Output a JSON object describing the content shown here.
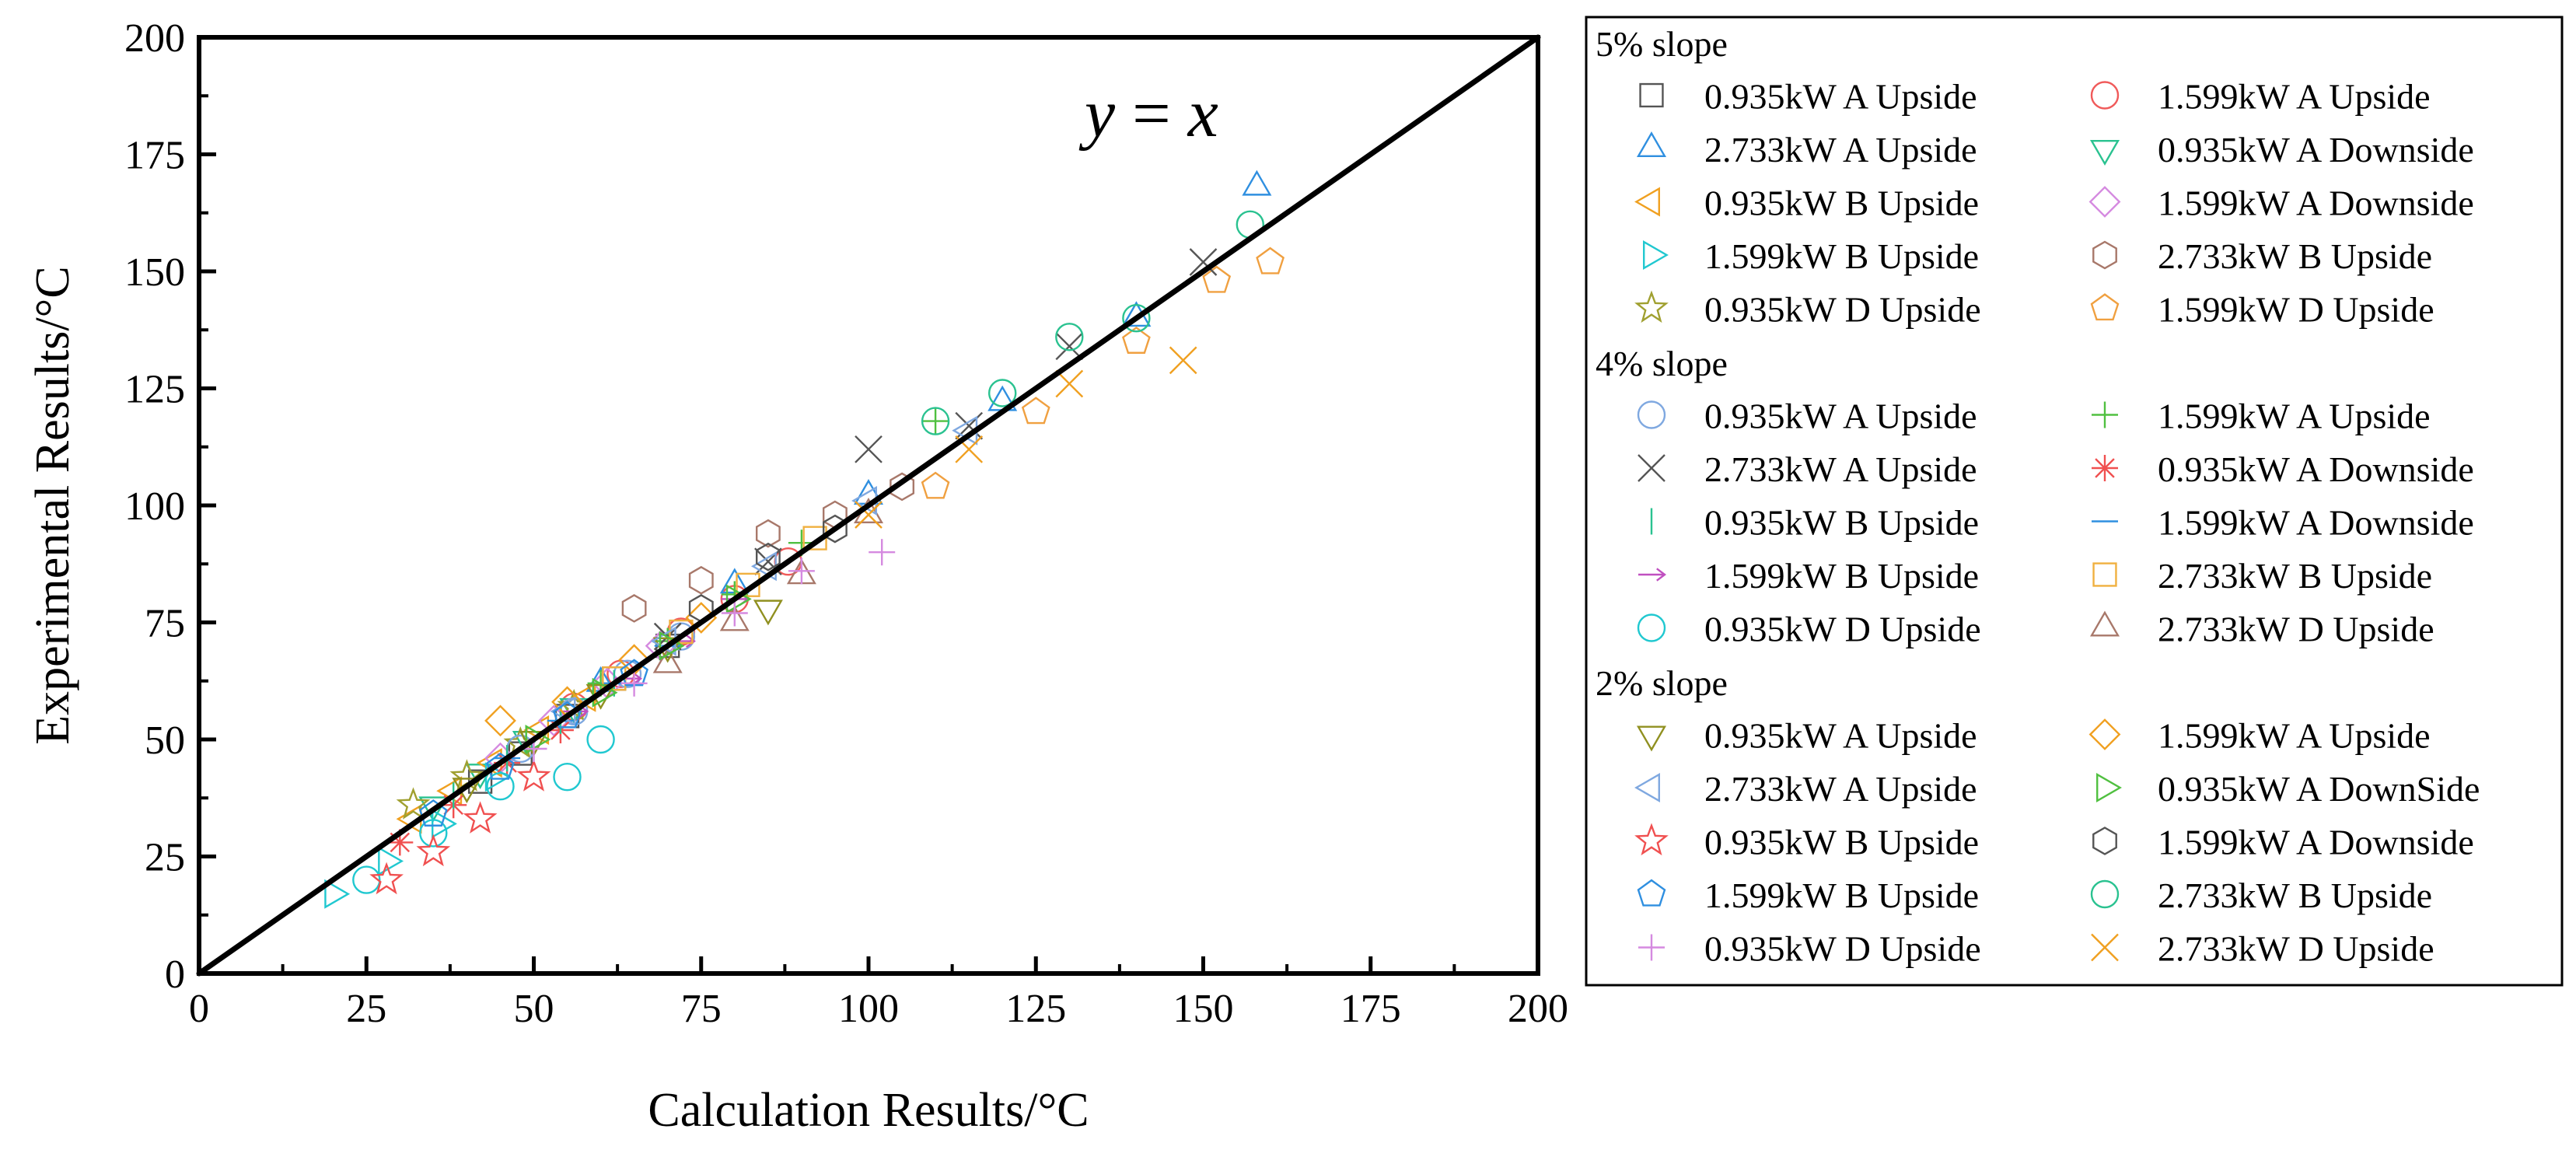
{
  "chart_data": {
    "type": "scatter",
    "xlabel": "Calculation Results/°C",
    "ylabel": "Experimental Results/°C",
    "xlim": [
      0,
      200
    ],
    "ylim": [
      0,
      200
    ],
    "xticks": [
      0,
      25,
      50,
      75,
      100,
      125,
      150,
      175,
      200
    ],
    "yticks": [
      0,
      25,
      50,
      75,
      100,
      125,
      150,
      175,
      200
    ],
    "grid": false,
    "legend_position": "right",
    "reference_line": {
      "label_y": "y",
      "label_eq": " = ",
      "label_x": "x",
      "x": [
        0,
        200
      ],
      "y": [
        0,
        200
      ]
    },
    "groups": [
      {
        "title": "5% slope",
        "series": [
          {
            "name": "0.935kW A Upside",
            "marker": "square",
            "color": "#555555",
            "x": [
              42,
              48,
              55,
              62,
              70
            ],
            "y": [
              41,
              47,
              55,
              63,
              70
            ]
          },
          {
            "name": "1.599kW A Upside",
            "marker": "circle",
            "color": "#f05a5a",
            "x": [
              56,
              63,
              72,
              80,
              88
            ],
            "y": [
              57,
              64,
              73,
              80,
              88
            ]
          },
          {
            "name": "2.733kW A Upside",
            "marker": "triangle-up",
            "color": "#2f8fe0",
            "x": [
              60,
              80,
              100,
              120,
              140,
              158
            ],
            "y": [
              62,
              83,
              102,
              122,
              140,
              168
            ]
          },
          {
            "name": "0.935kW A Downside",
            "marker": "triangle-down",
            "color": "#2ac290",
            "x": [
              35,
              42,
              49,
              56
            ],
            "y": [
              36,
              43,
              50,
              57
            ]
          },
          {
            "name": "0.935kW B Upside",
            "marker": "triangle-left",
            "color": "#f0a020",
            "x": [
              32,
              38,
              44,
              51,
              58
            ],
            "y": [
              33,
              39,
              45,
              52,
              59
            ]
          },
          {
            "name": "1.599kW A Downside",
            "marker": "diamond",
            "color": "#d58ae0",
            "x": [
              45,
              53,
              61,
              69
            ],
            "y": [
              46,
              54,
              62,
              70
            ]
          },
          {
            "name": "1.599kW B Upside",
            "marker": "triangle-right",
            "color": "#20c8d0",
            "x": [
              20,
              28,
              36,
              44
            ],
            "y": [
              17,
              24,
              32,
              42
            ]
          },
          {
            "name": "2.733kW B Upside",
            "marker": "hexagon",
            "color": "#a8786a",
            "x": [
              65,
              75,
              85,
              95,
              105
            ],
            "y": [
              78,
              84,
              94,
              98,
              104
            ]
          },
          {
            "name": "0.935kW D Upside",
            "marker": "star",
            "color": "#a0a030",
            "x": [
              32,
              40,
              48,
              56
            ],
            "y": [
              36,
              42,
              49,
              57
            ]
          },
          {
            "name": "1.599kW D Upside",
            "marker": "pentagon",
            "color": "#f0a040",
            "x": [
              110,
              125,
              140,
              152,
              160
            ],
            "y": [
              104,
              120,
              135,
              148,
              152
            ]
          }
        ]
      },
      {
        "title": "4% slope",
        "series": [
          {
            "name": "0.935kW A Upside",
            "marker": "circle",
            "color": "#7fa8e0",
            "x": [
              48,
              56,
              64,
              72
            ],
            "y": [
              48,
              56,
              64,
              72
            ]
          },
          {
            "name": "1.599kW A Upside",
            "marker": "plus",
            "color": "#50c040",
            "x": [
              60,
              70,
              80,
              90,
              110
            ],
            "y": [
              62,
              71,
              81,
              92,
              118
            ]
          },
          {
            "name": "2.733kW A Upside",
            "marker": "x",
            "color": "#555555",
            "x": [
              70,
              85,
              100,
              115,
              130,
              150
            ],
            "y": [
              72,
              88,
              112,
              117,
              134,
              152
            ]
          },
          {
            "name": "0.935kW A Downside",
            "marker": "asterisk",
            "color": "#f05050",
            "x": [
              30,
              38,
              46,
              54
            ],
            "y": [
              28,
              36,
              45,
              52
            ]
          },
          {
            "name": "0.935kW B Upside",
            "marker": "vline",
            "color": "#2ac290",
            "x": [
              38,
              46,
              54,
              62
            ],
            "y": [
              38,
              46,
              54,
              62
            ]
          },
          {
            "name": "1.599kW A Downside",
            "marker": "hline",
            "color": "#2f8fe0",
            "x": [
              46,
              54,
              62,
              70
            ],
            "y": [
              46,
              54,
              62,
              70
            ]
          },
          {
            "name": "1.599kW B Upside",
            "marker": "arrow",
            "color": "#c050c0",
            "x": [
              56,
              64,
              72,
              80
            ],
            "y": [
              56,
              63,
              71,
              80
            ]
          },
          {
            "name": "2.733kW B Upside",
            "marker": "square",
            "color": "#f0b040",
            "x": [
              62,
              72,
              82,
              92
            ],
            "y": [
              63,
              73,
              83,
              93
            ]
          },
          {
            "name": "0.935kW D Upside",
            "marker": "circle",
            "color": "#20c8d0",
            "x": [
              25,
              35,
              45,
              55,
              60
            ],
            "y": [
              20,
              30,
              40,
              42,
              50
            ]
          },
          {
            "name": "2.733kW D Upside",
            "marker": "triangle-up",
            "color": "#a8786a",
            "x": [
              70,
              80,
              90,
              100
            ],
            "y": [
              66,
              75,
              85,
              98
            ]
          }
        ]
      },
      {
        "title": "2% slope",
        "series": [
          {
            "name": "0.935kW A Upside",
            "marker": "triangle-down",
            "color": "#909020",
            "x": [
              40,
              50,
              60,
              70,
              85
            ],
            "y": [
              40,
              50,
              60,
              70,
              78
            ]
          },
          {
            "name": "1.599kW A Upside",
            "marker": "diamond",
            "color": "#f0a020",
            "x": [
              45,
              55,
              65,
              75
            ],
            "y": [
              54,
              58,
              67,
              76
            ]
          },
          {
            "name": "2.733kW A Upside",
            "marker": "triangle-left",
            "color": "#7fa8e0",
            "x": [
              55,
              70,
              85,
              100,
              115
            ],
            "y": [
              56,
              71,
              87,
              101,
              116
            ]
          },
          {
            "name": "0.935kW A DownSide",
            "marker": "triangle-right",
            "color": "#50c040",
            "x": [
              50,
              60,
              70,
              80
            ],
            "y": [
              50,
              60,
              70,
              80
            ]
          },
          {
            "name": "0.935kW B Upside",
            "marker": "star",
            "color": "#f05050",
            "x": [
              28,
              35,
              42,
              50
            ],
            "y": [
              20,
              26,
              33,
              42
            ]
          },
          {
            "name": "1.599kW A Downside",
            "marker": "hexagon",
            "color": "#555555",
            "x": [
              75,
              85,
              95
            ],
            "y": [
              78,
              89,
              95
            ]
          },
          {
            "name": "1.599kW B Upside",
            "marker": "pentagon",
            "color": "#2f8fe0",
            "x": [
              35,
              45,
              55,
              65
            ],
            "y": [
              34,
              44,
              55,
              64
            ]
          },
          {
            "name": "2.733kW B Upside",
            "marker": "circle",
            "color": "#2ac290",
            "x": [
              110,
              120,
              130,
              140,
              157
            ],
            "y": [
              118,
              124,
              136,
              140,
              160
            ]
          },
          {
            "name": "0.935kW D Upside",
            "marker": "plus",
            "color": "#d58ae0",
            "x": [
              50,
              65,
              80,
              90,
              102
            ],
            "y": [
              48,
              62,
              77,
              86,
              90
            ]
          },
          {
            "name": "2.733kW D Upside",
            "marker": "x",
            "color": "#f0a020",
            "x": [
              100,
              115,
              130,
              147
            ],
            "y": [
              98,
              112,
              126,
              131
            ]
          }
        ]
      }
    ]
  }
}
